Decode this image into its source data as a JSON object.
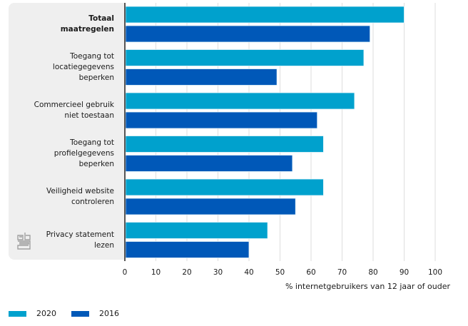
{
  "chart_data": {
    "type": "bar",
    "orientation": "horizontal",
    "categories": [
      "Totaal maatregelen",
      "Toegang tot locatiegegevens beperken",
      "Commercieel gebruik niet toestaan",
      "Toegang tot profielgegevens beperken",
      "Veiligheid website controleren",
      "Privacy statement lezen"
    ],
    "category_lines": [
      [
        "Totaal",
        "maatregelen"
      ],
      [
        "Toegang tot",
        "locatiegegevens",
        "beperken"
      ],
      [
        "Commercieel gebruik",
        "niet toestaan"
      ],
      [
        "Toegang tot",
        "profielgegevens",
        "beperken"
      ],
      [
        "Veiligheid website",
        "controleren"
      ],
      [
        "Privacy statement",
        "lezen"
      ]
    ],
    "series": [
      {
        "name": "2020",
        "color": "#00a1cd",
        "values": [
          90,
          77,
          74,
          64,
          64,
          46
        ]
      },
      {
        "name": "2016",
        "color": "#0058b8",
        "values": [
          79,
          49,
          62,
          54,
          55,
          40
        ]
      }
    ],
    "xlabel": "% internetgebruikers van 12 jaar of ouder",
    "ylabel": "",
    "xlim": [
      0,
      100
    ],
    "xticks": [
      0,
      10,
      20,
      30,
      40,
      50,
      60,
      70,
      80,
      90,
      100
    ],
    "grid": true,
    "legend": "bottom-left",
    "title": ""
  },
  "branding": {
    "logo": "cbs-logo-icon"
  }
}
